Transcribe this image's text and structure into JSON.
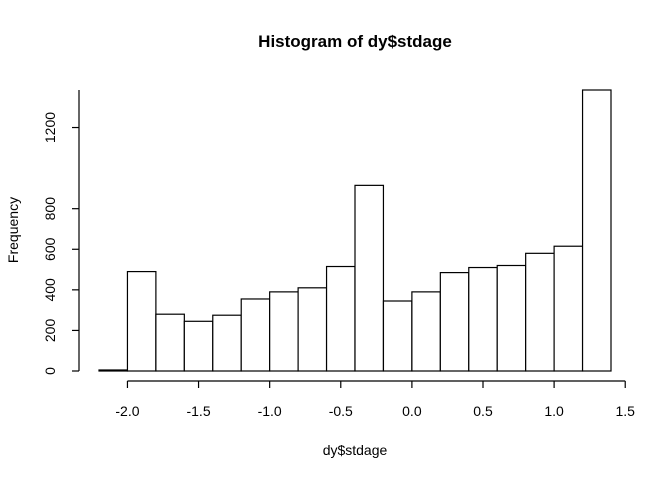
{
  "chart_data": {
    "type": "bar",
    "title": "Histogram of dy$stdage",
    "xlabel": "dy$stdage",
    "ylabel": "Frequency",
    "bin_edges": [
      -2.2,
      -2.0,
      -1.8,
      -1.6,
      -1.4,
      -1.2,
      -1.0,
      -0.8,
      -0.6,
      -0.4,
      -0.2,
      0.0,
      0.2,
      0.4,
      0.6,
      0.8,
      1.0,
      1.2,
      1.4
    ],
    "values": [
      5,
      490,
      280,
      245,
      275,
      355,
      390,
      410,
      515,
      915,
      345,
      390,
      485,
      510,
      520,
      580,
      615,
      1385
    ],
    "xlim": [
      -2.2,
      1.5
    ],
    "ylim": [
      0,
      1385
    ],
    "x_ticks": [
      -2.0,
      -1.5,
      -1.0,
      -0.5,
      0.0,
      0.5,
      1.0,
      1.5
    ],
    "x_tick_labels": [
      "-2.0",
      "-1.5",
      "-1.0",
      "-0.5",
      "0.0",
      "0.5",
      "1.0",
      "1.5"
    ],
    "y_ticks": [
      0,
      200,
      400,
      600,
      800,
      1200
    ],
    "y_tick_labels": [
      "0",
      "200",
      "400",
      "600",
      "800",
      "1200"
    ],
    "grid": false,
    "bar_fill": "#ffffff",
    "bar_stroke": "#000000"
  }
}
